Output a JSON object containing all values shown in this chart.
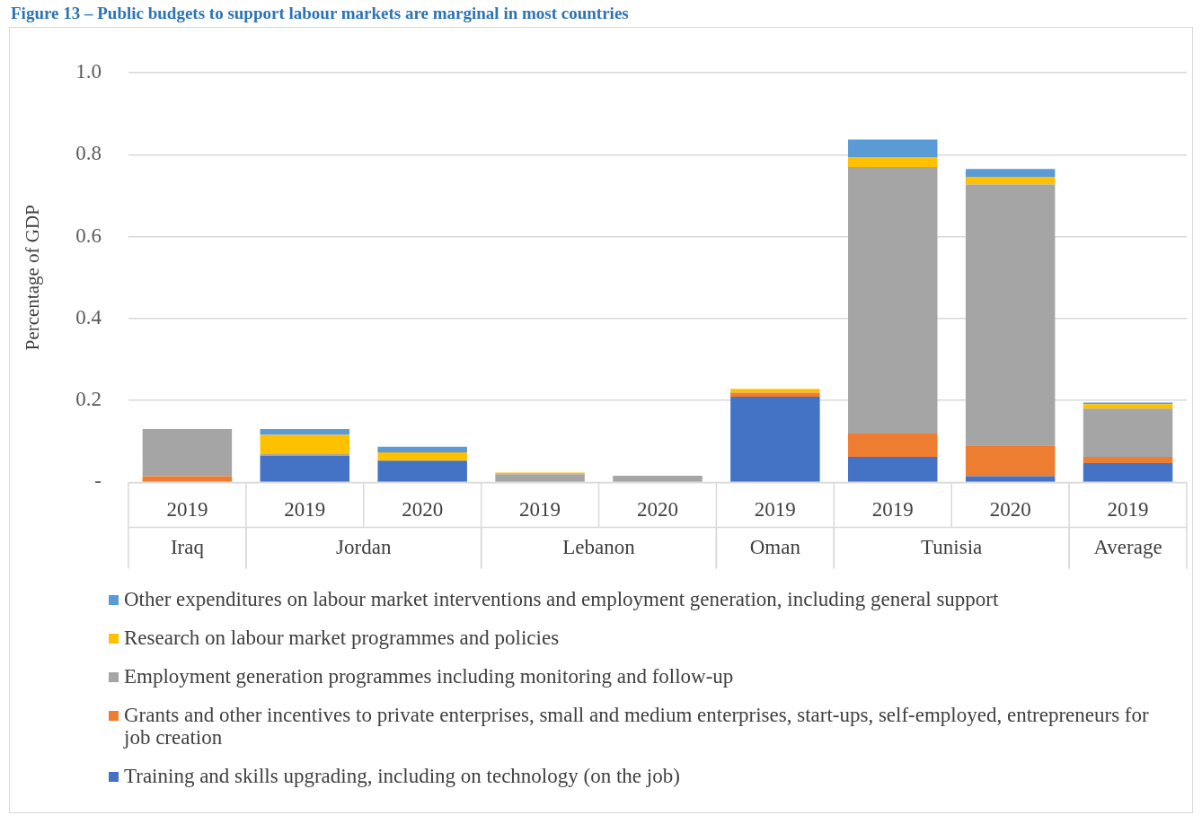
{
  "chart_data": {
    "type": "bar",
    "title": "Figure 13 – Public budgets to support labour markets are marginal in most countries",
    "ylabel": "Percentage of GDP",
    "categories": [
      "2019",
      "2019",
      "2020",
      "2019",
      "2020",
      "2019",
      "2019",
      "2020",
      "2019"
    ],
    "annotations": [
      "Iraq",
      "Jordan",
      "Lebanon",
      "Oman",
      "Tunisia",
      "Average"
    ],
    "stacked": true,
    "ylim": [
      0,
      1
    ],
    "yticks": [
      {
        "value": 0,
        "label": "-"
      },
      0.2,
      0.4,
      0.6,
      0.8,
      {
        "value": 1,
        "label": "1.0"
      }
    ],
    "grid": "y",
    "legend": "bottom",
    "series": [
      {
        "name": "Training and skills upgrading, including on technology (on the job)",
        "color": "#4472c4",
        "values": [
          0,
          0.065,
          0.053,
          0,
          0,
          0.209,
          0.062,
          0.015,
          0.047
        ]
      },
      {
        "name": "Grants and other incentives to private enterprises, small and medium enterprises, start-ups, self-employed, entrepreneurs for job creation",
        "color": "#ed7d31",
        "values": [
          0.015,
          0,
          0,
          0,
          0,
          0.01,
          0.057,
          0.075,
          0.015
        ]
      },
      {
        "name": "Employment generation programmes including monitoring and follow-up",
        "color": "#a5a5a5",
        "values": [
          0.115,
          0.004,
          0,
          0.02,
          0.016,
          0,
          0.651,
          0.637,
          0.118
        ]
      },
      {
        "name": "Research on labour market programmes and policies",
        "color": "#ffc000",
        "values": [
          0,
          0.047,
          0.02,
          0.004,
          0,
          0.009,
          0.024,
          0.019,
          0.011
        ]
      },
      {
        "name": "Other expenditures on labour market interventions and employment generation, including general support",
        "color": "#5b9bd5",
        "values": [
          0,
          0.014,
          0.014,
          0,
          0,
          0,
          0.043,
          0.019,
          0.004
        ]
      }
    ]
  }
}
